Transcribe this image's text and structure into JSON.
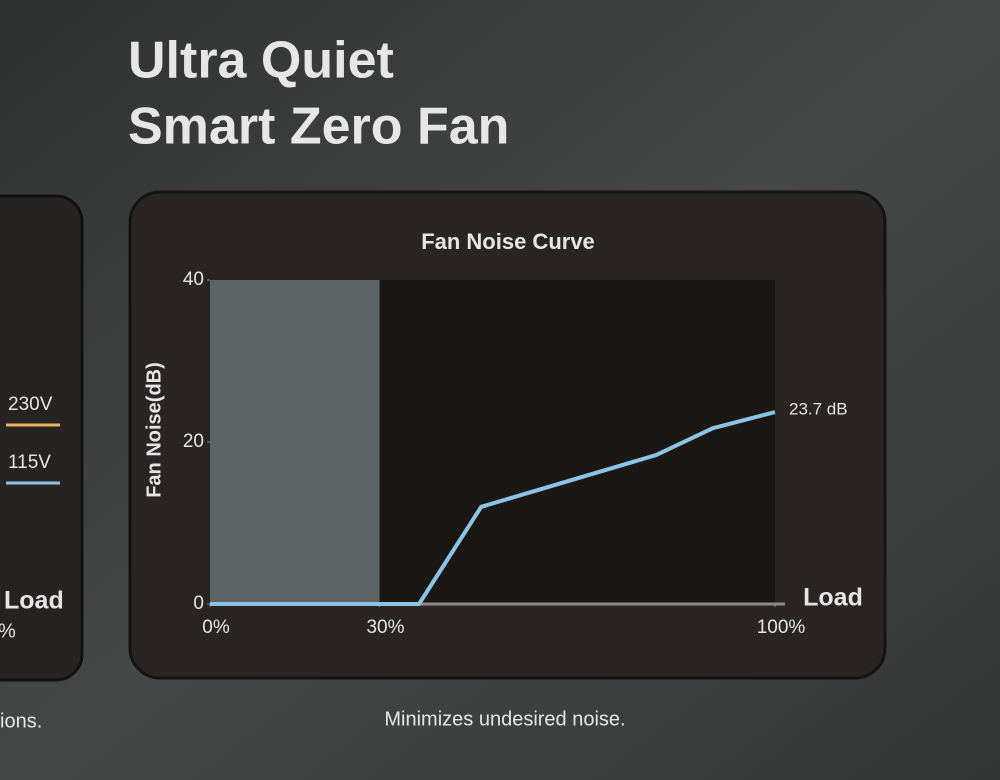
{
  "title_lines": [
    "Ultra Quiet",
    "Smart Zero Fan"
  ],
  "left_panel": {
    "legend": [
      {
        "label": "230V",
        "color": "#e8b560"
      },
      {
        "label": "115V",
        "color": "#8cc4e6"
      }
    ],
    "axis_label": "Load",
    "tick_label": "%",
    "caption": "ions."
  },
  "caption": "Minimizes undesired noise.",
  "chart_data": {
    "type": "line",
    "title": "Fan Noise Curve",
    "x_label": "Load",
    "y_label": "Fan Noise(dB)",
    "x": [
      0,
      37,
      48,
      79,
      89,
      100
    ],
    "values": [
      0,
      0,
      12,
      18.4,
      21.7,
      23.7
    ],
    "value_labels": [
      null,
      null,
      null,
      null,
      null,
      "23.7 dB"
    ],
    "color": "#8cc4e6",
    "zero_fan_region": [
      0,
      30
    ],
    "xlim": [
      0,
      100
    ],
    "xticks": [
      {
        "value": 0,
        "label": "0%"
      },
      {
        "value": 30,
        "label": "30%"
      },
      {
        "value": 100,
        "label": "100%"
      }
    ],
    "ylim": [
      0,
      40
    ],
    "yticks": [
      0,
      20,
      40
    ],
    "grid": false
  }
}
